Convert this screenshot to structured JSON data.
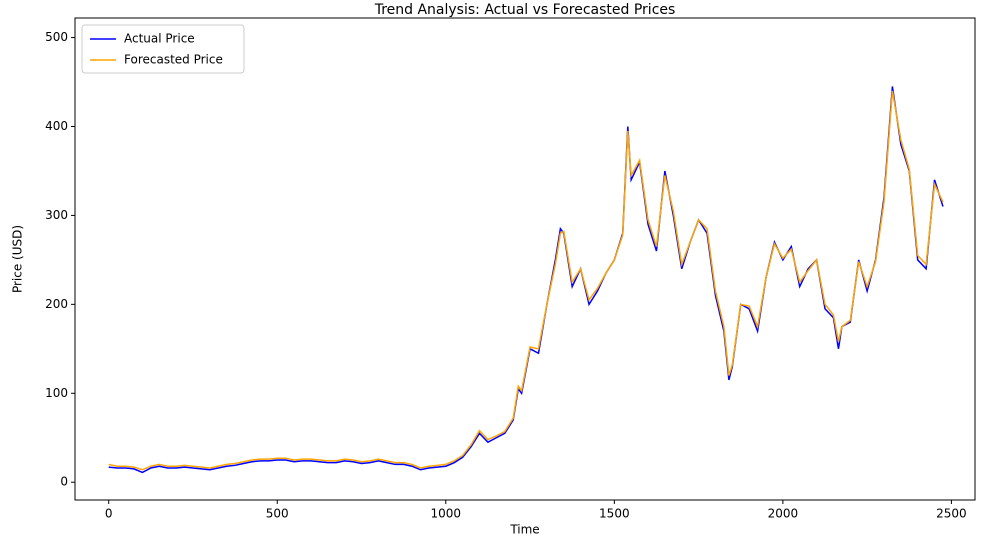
{
  "chart_data": {
    "type": "line",
    "title": "Trend Analysis: Actual vs Forecasted Prices",
    "xlabel": "Time",
    "ylabel": "Price (USD)",
    "x": [
      0,
      25,
      50,
      75,
      100,
      125,
      150,
      175,
      200,
      225,
      250,
      275,
      300,
      325,
      350,
      375,
      400,
      425,
      450,
      475,
      500,
      525,
      550,
      575,
      600,
      625,
      650,
      675,
      700,
      725,
      750,
      775,
      800,
      825,
      850,
      875,
      900,
      925,
      950,
      975,
      1000,
      1025,
      1050,
      1075,
      1100,
      1125,
      1150,
      1175,
      1200,
      1215,
      1225,
      1250,
      1275,
      1300,
      1325,
      1340,
      1350,
      1375,
      1400,
      1425,
      1450,
      1475,
      1500,
      1525,
      1540,
      1550,
      1575,
      1600,
      1625,
      1650,
      1675,
      1700,
      1725,
      1750,
      1775,
      1800,
      1825,
      1840,
      1850,
      1875,
      1900,
      1925,
      1950,
      1975,
      2000,
      2025,
      2050,
      2075,
      2100,
      2125,
      2150,
      2165,
      2175,
      2200,
      2225,
      2250,
      2275,
      2300,
      2325,
      2350,
      2375,
      2400,
      2425,
      2450,
      2475
    ],
    "series": [
      {
        "name": "Actual Price",
        "color": "#0000ff",
        "values": [
          17,
          16,
          16,
          15,
          11,
          16,
          18,
          16,
          16,
          17,
          16,
          15,
          14,
          16,
          18,
          19,
          21,
          23,
          24,
          24,
          25,
          25,
          23,
          24,
          24,
          23,
          22,
          22,
          24,
          23,
          21,
          22,
          24,
          22,
          20,
          20,
          18,
          14,
          16,
          17,
          18,
          22,
          28,
          40,
          55,
          45,
          50,
          55,
          70,
          105,
          100,
          150,
          145,
          200,
          250,
          285,
          280,
          220,
          240,
          200,
          215,
          235,
          250,
          280,
          400,
          340,
          360,
          290,
          260,
          350,
          300,
          240,
          270,
          295,
          280,
          210,
          170,
          115,
          130,
          200,
          195,
          170,
          230,
          270,
          250,
          265,
          220,
          240,
          250,
          195,
          185,
          150,
          175,
          180,
          250,
          215,
          250,
          320,
          445,
          380,
          350,
          250,
          240,
          340,
          310
        ]
      },
      {
        "name": "Forecasted Price",
        "color": "#ffa500",
        "values": [
          20,
          18,
          18,
          17,
          14,
          18,
          20,
          18,
          18,
          19,
          18,
          17,
          16,
          18,
          20,
          21,
          23,
          25,
          26,
          26,
          27,
          27,
          25,
          26,
          26,
          25,
          24,
          24,
          26,
          25,
          23,
          24,
          26,
          24,
          22,
          22,
          20,
          16,
          18,
          19,
          20,
          24,
          30,
          42,
          58,
          48,
          52,
          57,
          72,
          108,
          103,
          152,
          150,
          200,
          245,
          280,
          282,
          225,
          240,
          205,
          218,
          235,
          250,
          278,
          395,
          345,
          362,
          295,
          265,
          345,
          305,
          245,
          270,
          295,
          285,
          215,
          175,
          120,
          132,
          200,
          198,
          175,
          230,
          268,
          252,
          262,
          225,
          238,
          250,
          200,
          188,
          158,
          175,
          182,
          248,
          220,
          248,
          315,
          440,
          385,
          352,
          255,
          245,
          335,
          315
        ]
      }
    ],
    "xlim": [
      -100,
      2570
    ],
    "xticks": [
      0,
      500,
      1000,
      1500,
      2000,
      2500
    ],
    "ylim": [
      -20,
      522
    ],
    "yticks": [
      0,
      100,
      200,
      300,
      400,
      500
    ],
    "legend": "upper left"
  }
}
